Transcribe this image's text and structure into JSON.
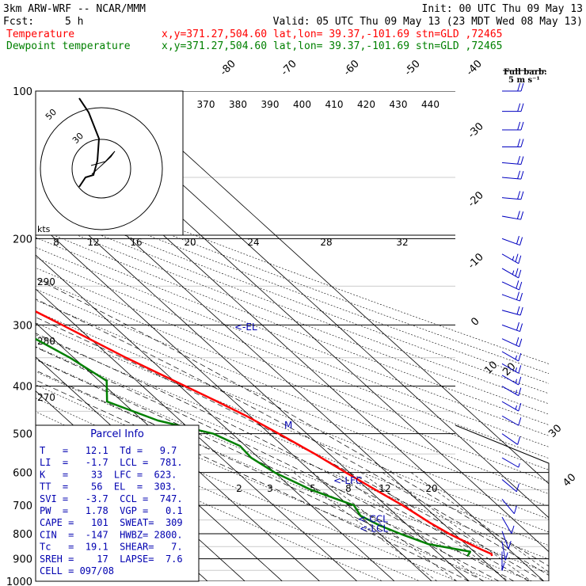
{
  "header": {
    "model": "3km ARW-WRF -- NCAR/MMM",
    "init": "Init: 00 UTC Thu 09 May 13",
    "fcst_label": "Fcst:",
    "fcst_value": "5 h",
    "valid": "Valid: 05 UTC Thu 09 May 13 (23 MDT Wed 08 May 13)",
    "temp_label": "Temperature",
    "temp_info": "x,y=371.27,504.60   lat,lon= 39.37,-101.69   stn=GLD ,72465",
    "dew_label": "Dewpoint temperature",
    "dew_info": "x,y=371.27,504.60   lat,lon= 39.37,-101.69   stn=GLD ,72465"
  },
  "barb_legend": {
    "line1": "Full barb:",
    "line2": "5 m s⁻¹"
  },
  "colors": {
    "temperature": "#ff0000",
    "dewpoint": "#008000",
    "info": "#0000b0",
    "axes": "#000000",
    "barbs": "#0000c0"
  },
  "chart_data": {
    "type": "line",
    "title": "",
    "ylabel": "",
    "y_axis": {
      "scale": "log-pressure",
      "unit": "hPa",
      "ylim": [
        1000,
        100
      ],
      "ticks": [
        100,
        200,
        300,
        400,
        500,
        600,
        700,
        800,
        900,
        1000
      ]
    },
    "skew_isotherm_labels": [
      "-80",
      "-70",
      "-60",
      "-50",
      "-40",
      "-30",
      "-20",
      "-10",
      "0",
      "10",
      "20",
      "30",
      "40"
    ],
    "adiabat_labels": [
      "290",
      "280",
      "270"
    ],
    "mixing_ratio_labels": [
      "2",
      "3",
      "5",
      "8",
      "12",
      "20"
    ],
    "upper_theta_labels": [
      "370",
      "380",
      "390",
      "400",
      "410",
      "420",
      "430",
      "440"
    ],
    "hodograph": {
      "speed_unit": "kts",
      "ring_labels": [
        "50",
        "30"
      ],
      "axis_labels": [
        "8",
        "12",
        "16",
        "20",
        "24",
        "28",
        "32"
      ]
    },
    "markers": [
      {
        "label": "EL",
        "p": 303
      },
      {
        "label": "LFC",
        "p": 623
      },
      {
        "label": "CCL",
        "p": 747
      },
      {
        "label": "LCL",
        "p": 781
      }
    ],
    "series": [
      {
        "name": "Temperature",
        "color": "#ff0000",
        "points": [
          [
            888,
            13.5
          ],
          [
            880,
            14.0
          ],
          [
            860,
            12.5
          ],
          [
            830,
            10.5
          ],
          [
            800,
            8.6
          ],
          [
            760,
            6.7
          ],
          [
            700,
            4.5
          ],
          [
            650,
            1.8
          ],
          [
            600,
            -1.0
          ],
          [
            550,
            -3.8
          ],
          [
            500,
            -7.5
          ],
          [
            460,
            -11.0
          ],
          [
            430,
            -14.5
          ],
          [
            400,
            -18.5
          ],
          [
            350,
            -26.0
          ],
          [
            300,
            -33.5
          ],
          [
            250,
            -42.5
          ],
          [
            230,
            -46.5
          ],
          [
            210,
            -50.0
          ],
          [
            200,
            -51.5
          ],
          [
            170,
            -55.5
          ],
          [
            150,
            -57.5
          ],
          [
            130,
            -58.0
          ],
          [
            110,
            -58.5
          ],
          [
            100,
            -59.5
          ]
        ]
      },
      {
        "name": "Dewpoint temperature",
        "color": "#008000",
        "points": [
          [
            888,
            7.0
          ],
          [
            870,
            9.0
          ],
          [
            840,
            0.0
          ],
          [
            800,
            -4.5
          ],
          [
            770,
            -7.5
          ],
          [
            735,
            -9.8
          ],
          [
            700,
            -8.5
          ],
          [
            650,
            -15.5
          ],
          [
            600,
            -20.0
          ],
          [
            560,
            -22.0
          ],
          [
            530,
            -21.5
          ],
          [
            500,
            -25.0
          ],
          [
            470,
            -36.0
          ],
          [
            430,
            -44.0
          ],
          [
            390,
            -38.0
          ],
          [
            350,
            -41.0
          ],
          [
            300,
            -47.5
          ],
          [
            250,
            -55.0
          ],
          [
            210,
            -59.0
          ],
          [
            190,
            -64.0
          ],
          [
            170,
            -69.0
          ],
          [
            150,
            -74.0
          ],
          [
            130,
            -76.0
          ],
          [
            115,
            -77.0
          ],
          [
            100,
            -78.0
          ]
        ]
      }
    ],
    "wind_barbs": [
      {
        "p": 100,
        "spd": 20,
        "dir": 270
      },
      {
        "p": 110,
        "spd": 20,
        "dir": 270
      },
      {
        "p": 120,
        "spd": 20,
        "dir": 270
      },
      {
        "p": 130,
        "spd": 20,
        "dir": 270
      },
      {
        "p": 140,
        "spd": 22,
        "dir": 275
      },
      {
        "p": 150,
        "spd": 22,
        "dir": 275
      },
      {
        "p": 165,
        "spd": 22,
        "dir": 275
      },
      {
        "p": 180,
        "spd": 20,
        "dir": 280
      },
      {
        "p": 200,
        "spd": 22,
        "dir": 290
      },
      {
        "p": 215,
        "spd": 24,
        "dir": 300
      },
      {
        "p": 230,
        "spd": 24,
        "dir": 300
      },
      {
        "p": 245,
        "spd": 22,
        "dir": 295
      },
      {
        "p": 260,
        "spd": 20,
        "dir": 290
      },
      {
        "p": 280,
        "spd": 18,
        "dir": 285
      },
      {
        "p": 300,
        "spd": 20,
        "dir": 290
      },
      {
        "p": 320,
        "spd": 18,
        "dir": 295
      },
      {
        "p": 340,
        "spd": 15,
        "dir": 300
      },
      {
        "p": 360,
        "spd": 15,
        "dir": 300
      },
      {
        "p": 380,
        "spd": 15,
        "dir": 300
      },
      {
        "p": 400,
        "spd": 15,
        "dir": 300
      },
      {
        "p": 430,
        "spd": 15,
        "dir": 300
      },
      {
        "p": 460,
        "spd": 12,
        "dir": 300
      },
      {
        "p": 500,
        "spd": 10,
        "dir": 305
      },
      {
        "p": 560,
        "spd": 7,
        "dir": 300
      },
      {
        "p": 620,
        "spd": 10,
        "dir": 310
      },
      {
        "p": 680,
        "spd": 10,
        "dir": 320
      },
      {
        "p": 740,
        "spd": 10,
        "dir": 330
      },
      {
        "p": 790,
        "spd": 10,
        "dir": 340
      },
      {
        "p": 830,
        "spd": 10,
        "dir": 350
      },
      {
        "p": 870,
        "spd": 10,
        "dir": 0
      }
    ]
  },
  "parcel_info": {
    "title": "Parcel Info",
    "rows": [
      "T   =   12.1  Td =   9.7",
      "LI  =   -1.7  LCL =  781.",
      "K   =    33  LFC =  623.",
      "TT  =    56  EL  =  303.",
      "SVI =   -3.7  CCL =  747.",
      "PW  =   1.78  VGP =   0.1",
      "CAPE =   101  SWEAT=  309",
      "CIN  =  -147  HWBZ= 2800.",
      "Tc   =  19.1  SHEAR=   7.",
      "SREH =    17  LAPSE=  7.6",
      "CELL = 097/08"
    ]
  }
}
